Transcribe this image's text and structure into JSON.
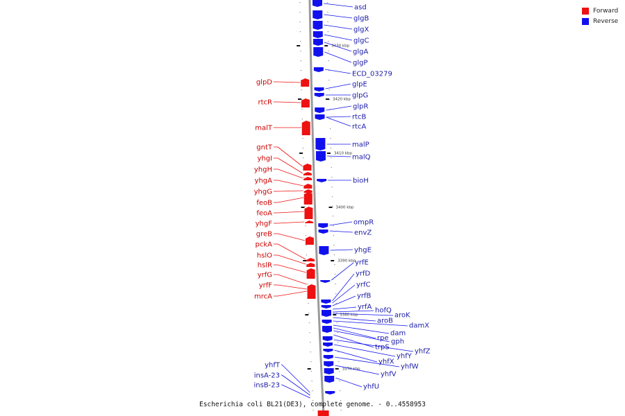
{
  "colors": {
    "forward": "#ee1111",
    "reverse": "#1111ee",
    "axis": "#9a9a9a"
  },
  "legend": {
    "forward_label": "Forward",
    "reverse_label": "Reverse"
  },
  "caption": "Escherichia coli BL21(DE3), complete genome. - 0..4558953",
  "ticks": [
    {
      "label": "3430 kbp"
    },
    {
      "label": "3420 kbp"
    },
    {
      "label": "3410 kbp"
    },
    {
      "label": "3400 kbp"
    },
    {
      "label": "3390 kbp"
    },
    {
      "label": "3380 kbp"
    },
    {
      "label": "3370 kbp"
    }
  ],
  "forward_genes": [
    "glpD",
    "rtcR",
    "malT",
    "gntT",
    "yhgI",
    "yhgH",
    "yhgA",
    "yhgG",
    "feoB",
    "feoA",
    "yhgF",
    "greB",
    "pckA",
    "hslO",
    "hslR",
    "yrfG",
    "yrfF",
    "mrcA"
  ],
  "reverse_genes_top": [
    "asd",
    "glgB",
    "glgX",
    "glgC",
    "glgA",
    "glgP",
    "ECD_03279",
    "glpE",
    "glpG",
    "glpR",
    "rtcB",
    "rtcA",
    "malP",
    "malQ",
    "bioH",
    "ompR",
    "envZ",
    "yhgE"
  ],
  "reverse_genes_bottom": [
    "yrfE",
    "yrfD",
    "yrfC",
    "yrfB",
    "yrfA",
    "hofQ",
    "aroK",
    "aroB",
    "damX",
    "dam",
    "rpe",
    "gph",
    "trpS",
    "yhfZ",
    "yhfY",
    "yhfX",
    "yhfW",
    "yhfV",
    "yhfU"
  ],
  "reverse_genes_left": [
    "yhfT",
    "insA-23",
    "insB-23"
  ]
}
